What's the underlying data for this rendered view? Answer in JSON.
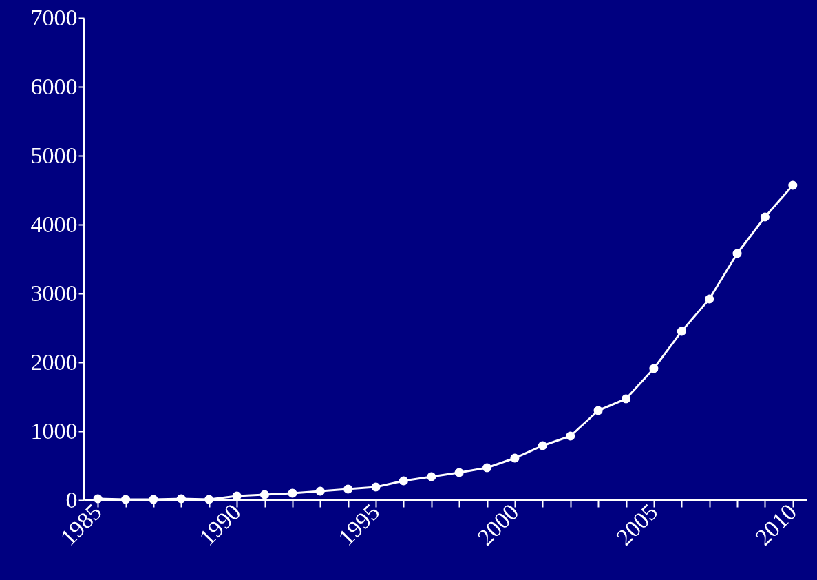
{
  "chart_data": {
    "type": "line",
    "x": [
      1985,
      1986,
      1987,
      1988,
      1989,
      1990,
      1991,
      1992,
      1993,
      1994,
      1995,
      1996,
      1997,
      1998,
      1999,
      2000,
      2001,
      2002,
      2003,
      2004,
      2005,
      2006,
      2007,
      2008,
      2009,
      2010
    ],
    "series": [
      {
        "color": "#ffffff",
        "values": [
          20,
          10,
          10,
          20,
          10,
          60,
          80,
          100,
          130,
          160,
          190,
          280,
          340,
          400,
          470,
          610,
          790,
          930,
          1300,
          1470,
          1910,
          2450,
          2920,
          3580,
          4110,
          4570
        ]
      }
    ],
    "xlim": [
      1984.5,
      2010.5
    ],
    "xticks": [
      1985,
      {
        "value": 1986,
        "label": null
      },
      {
        "value": 1987,
        "label": null
      },
      {
        "value": 1988,
        "label": null
      },
      {
        "value": 1989,
        "label": null
      },
      1990,
      {
        "value": 1991,
        "label": null
      },
      {
        "value": 1992,
        "label": null
      },
      {
        "value": 1993,
        "label": null
      },
      {
        "value": 1994,
        "label": null
      },
      1995,
      {
        "value": 1996,
        "label": null
      },
      {
        "value": 1997,
        "label": null
      },
      {
        "value": 1998,
        "label": null
      },
      {
        "value": 1999,
        "label": null
      },
      2000,
      {
        "value": 2001,
        "label": null
      },
      {
        "value": 2002,
        "label": null
      },
      {
        "value": 2003,
        "label": null
      },
      {
        "value": 2004,
        "label": null
      },
      2005,
      {
        "value": 2006,
        "label": null
      },
      {
        "value": 2007,
        "label": null
      },
      {
        "value": 2008,
        "label": null
      },
      {
        "value": 2009,
        "label": null
      },
      2010
    ],
    "ylim": [
      0,
      7000
    ],
    "yticks": [
      0,
      1000,
      2000,
      3000,
      4000,
      5000,
      6000,
      7000
    ],
    "grid": false,
    "marker": "circle",
    "line_style": "solid"
  }
}
